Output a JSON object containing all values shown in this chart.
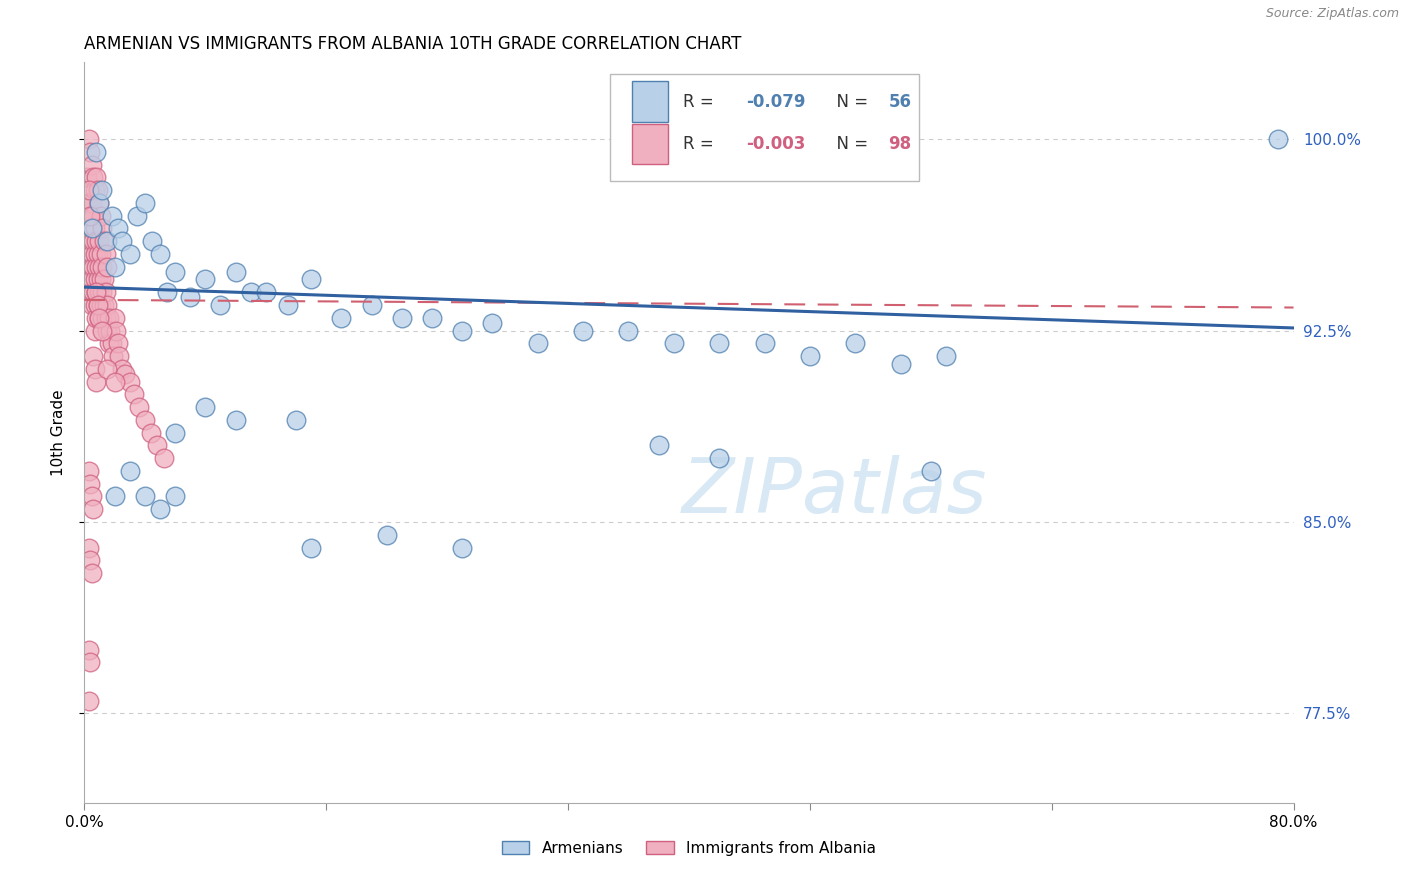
{
  "title": "ARMENIAN VS IMMIGRANTS FROM ALBANIA 10TH GRADE CORRELATION CHART",
  "source": "Source: ZipAtlas.com",
  "ylabel": "10th Grade",
  "legend_blue_R": "-0.079",
  "legend_blue_N": "56",
  "legend_pink_R": "-0.003",
  "legend_pink_N": "98",
  "blue_fill": "#b8d0e8",
  "blue_edge": "#5080b0",
  "pink_fill": "#f0b0c0",
  "pink_edge": "#d06080",
  "blue_line_color": "#3060a0",
  "pink_line_color": "#d06070",
  "watermark_color": "#d8e8f4",
  "grid_color": "#cccccc",
  "right_tick_color": "#3060c0",
  "xmin": 0.0,
  "xmax": 0.8,
  "ymin": 0.74,
  "ymax": 1.03,
  "yticks": [
    0.775,
    0.85,
    0.925,
    1.0
  ],
  "ytick_labels": [
    "77.5%",
    "85.0%",
    "92.5%",
    "100.0%"
  ],
  "xticks": [
    0.0,
    0.16,
    0.32,
    0.48,
    0.64,
    0.8
  ],
  "blue_x": [
    0.005,
    0.008,
    0.01,
    0.012,
    0.015,
    0.018,
    0.02,
    0.022,
    0.025,
    0.03,
    0.035,
    0.04,
    0.045,
    0.05,
    0.055,
    0.06,
    0.07,
    0.08,
    0.09,
    0.1,
    0.11,
    0.12,
    0.135,
    0.15,
    0.17,
    0.19,
    0.21,
    0.23,
    0.25,
    0.27,
    0.3,
    0.33,
    0.36,
    0.39,
    0.42,
    0.45,
    0.48,
    0.51,
    0.54,
    0.57,
    0.06,
    0.08,
    0.1,
    0.14,
    0.02,
    0.03,
    0.04,
    0.05,
    0.06,
    0.38,
    0.42,
    0.15,
    0.2,
    0.25,
    0.56,
    0.79
  ],
  "blue_y": [
    0.965,
    0.995,
    0.975,
    0.98,
    0.96,
    0.97,
    0.95,
    0.965,
    0.96,
    0.955,
    0.97,
    0.975,
    0.96,
    0.955,
    0.94,
    0.948,
    0.938,
    0.945,
    0.935,
    0.948,
    0.94,
    0.94,
    0.935,
    0.945,
    0.93,
    0.935,
    0.93,
    0.93,
    0.925,
    0.928,
    0.92,
    0.925,
    0.925,
    0.92,
    0.92,
    0.92,
    0.915,
    0.92,
    0.912,
    0.915,
    0.885,
    0.895,
    0.89,
    0.89,
    0.86,
    0.87,
    0.86,
    0.855,
    0.86,
    0.88,
    0.875,
    0.84,
    0.845,
    0.84,
    0.87,
    1.0
  ],
  "pink_x": [
    0.002,
    0.002,
    0.003,
    0.003,
    0.003,
    0.004,
    0.004,
    0.004,
    0.004,
    0.005,
    0.005,
    0.005,
    0.005,
    0.005,
    0.006,
    0.006,
    0.006,
    0.006,
    0.007,
    0.007,
    0.007,
    0.007,
    0.007,
    0.008,
    0.008,
    0.008,
    0.008,
    0.009,
    0.009,
    0.009,
    0.01,
    0.01,
    0.01,
    0.01,
    0.011,
    0.011,
    0.011,
    0.012,
    0.012,
    0.012,
    0.013,
    0.013,
    0.014,
    0.014,
    0.015,
    0.015,
    0.016,
    0.016,
    0.017,
    0.018,
    0.019,
    0.02,
    0.021,
    0.022,
    0.023,
    0.025,
    0.027,
    0.03,
    0.033,
    0.036,
    0.04,
    0.044,
    0.048,
    0.053,
    0.003,
    0.004,
    0.005,
    0.006,
    0.007,
    0.008,
    0.009,
    0.01,
    0.011,
    0.012,
    0.013,
    0.014,
    0.015,
    0.006,
    0.007,
    0.008,
    0.003,
    0.004,
    0.005,
    0.006,
    0.003,
    0.004,
    0.005,
    0.003,
    0.004,
    0.003,
    0.008,
    0.009,
    0.01,
    0.012,
    0.015,
    0.02,
    0.003,
    0.004
  ],
  "pink_y": [
    0.985,
    0.975,
    0.975,
    0.965,
    0.955,
    0.97,
    0.96,
    0.95,
    0.94,
    0.975,
    0.965,
    0.955,
    0.945,
    0.935,
    0.97,
    0.96,
    0.95,
    0.94,
    0.965,
    0.955,
    0.945,
    0.935,
    0.925,
    0.96,
    0.95,
    0.94,
    0.93,
    0.955,
    0.945,
    0.935,
    0.96,
    0.95,
    0.94,
    0.93,
    0.955,
    0.945,
    0.935,
    0.95,
    0.94,
    0.93,
    0.945,
    0.935,
    0.94,
    0.93,
    0.935,
    0.925,
    0.93,
    0.92,
    0.925,
    0.92,
    0.915,
    0.93,
    0.925,
    0.92,
    0.915,
    0.91,
    0.908,
    0.905,
    0.9,
    0.895,
    0.89,
    0.885,
    0.88,
    0.875,
    1.0,
    0.995,
    0.99,
    0.985,
    0.98,
    0.985,
    0.98,
    0.975,
    0.97,
    0.965,
    0.96,
    0.955,
    0.95,
    0.915,
    0.91,
    0.905,
    0.87,
    0.865,
    0.86,
    0.855,
    0.84,
    0.835,
    0.83,
    0.8,
    0.795,
    0.78,
    0.94,
    0.935,
    0.93,
    0.925,
    0.91,
    0.905,
    0.98,
    0.97
  ],
  "blue_trendline_x": [
    0.0,
    0.8
  ],
  "blue_trendline_y": [
    0.942,
    0.926
  ],
  "pink_trendline_x": [
    0.0,
    0.8
  ],
  "pink_trendline_y": [
    0.937,
    0.934
  ]
}
